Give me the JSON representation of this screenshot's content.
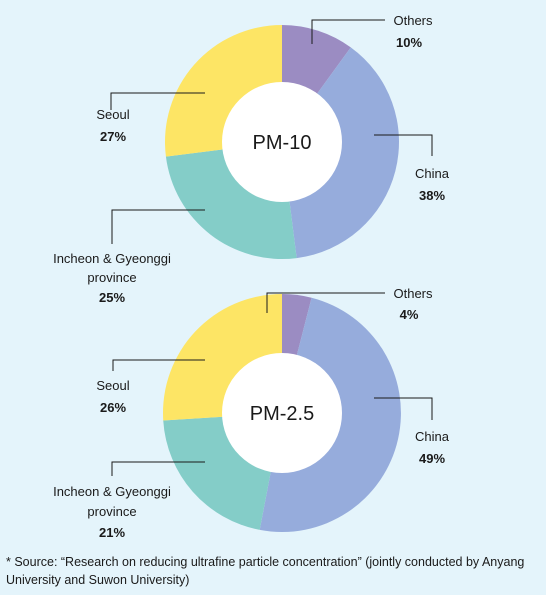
{
  "colors": {
    "background": "#e4f4fb",
    "others": "#9b8cc2",
    "china": "#96acdc",
    "incheon": "#84cdc8",
    "seoul": "#fde565",
    "hole": "#ffffff"
  },
  "chart_data": [
    {
      "type": "pie",
      "center_label": "PM-10",
      "slices": [
        {
          "key": "others",
          "label": "Others",
          "value": 10,
          "pct_text": "10%"
        },
        {
          "key": "china",
          "label": "China",
          "value": 38,
          "pct_text": "38%"
        },
        {
          "key": "incheon",
          "label": "Incheon & Gyeonggi province",
          "label_lines": [
            "Incheon & Gyeonggi",
            "province"
          ],
          "value": 25,
          "pct_text": "25%"
        },
        {
          "key": "seoul",
          "label": "Seoul",
          "value": 27,
          "pct_text": "27%"
        }
      ]
    },
    {
      "type": "pie",
      "center_label": "PM-2.5",
      "slices": [
        {
          "key": "others",
          "label": "Others",
          "value": 4,
          "pct_text": "4%"
        },
        {
          "key": "china",
          "label": "China",
          "value": 49,
          "pct_text": "49%"
        },
        {
          "key": "incheon",
          "label": "Incheon & Gyeonggi province",
          "label_lines": [
            "Incheon & Gyeonggi",
            "province"
          ],
          "value": 21,
          "pct_text": "21%"
        },
        {
          "key": "seoul",
          "label": "Seoul",
          "value": 26,
          "pct_text": "26%"
        }
      ]
    }
  ],
  "source_note": "* Source: “Research on reducing ultrafine particle concentration” (jointly conducted by Anyang University and Suwon University)"
}
